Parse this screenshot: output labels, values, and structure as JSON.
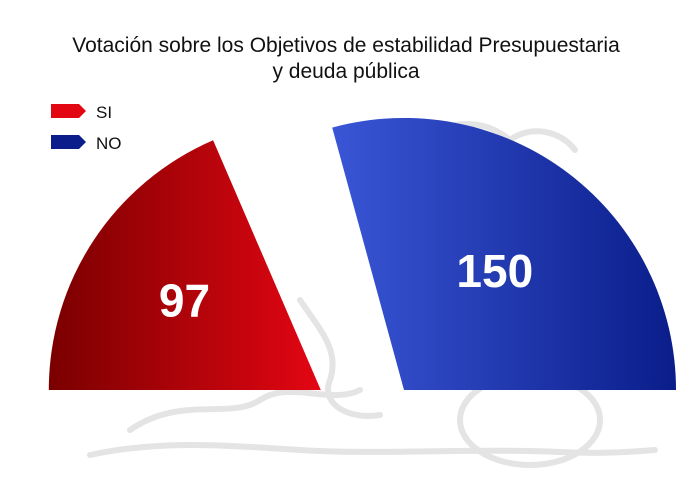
{
  "chart_data": {
    "type": "pie",
    "subtype": "parliament-half-donut",
    "title_lines": [
      "Votación sobre los Objetivos de estabilidad Presupuestaria",
      "y deuda pública"
    ],
    "legend_position": "top-left",
    "series": [
      {
        "name": "SI",
        "value": 97,
        "color": "#e30613",
        "color_dark": "#7a0000"
      },
      {
        "name": "NO",
        "value": 150,
        "color": "#3a56d6",
        "color_dark": "#0a1d8a"
      }
    ],
    "total": 247
  }
}
